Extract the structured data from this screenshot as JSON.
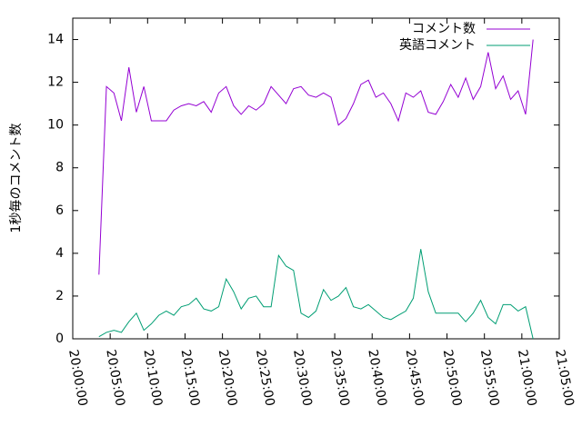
{
  "chart_data": {
    "type": "line",
    "y_label": "1秒毎のコメント数",
    "x": [
      "20:03:30",
      "20:04:30",
      "20:05:30",
      "20:06:30",
      "20:07:30",
      "20:08:30",
      "20:09:30",
      "20:10:30",
      "20:11:30",
      "20:12:30",
      "20:13:30",
      "20:14:30",
      "20:15:30",
      "20:16:30",
      "20:17:30",
      "20:18:30",
      "20:19:30",
      "20:20:30",
      "20:21:30",
      "20:22:30",
      "20:23:30",
      "20:24:30",
      "20:25:30",
      "20:26:30",
      "20:27:30",
      "20:28:30",
      "20:29:30",
      "20:30:30",
      "20:31:30",
      "20:32:30",
      "20:33:30",
      "20:34:30",
      "20:35:30",
      "20:36:30",
      "20:37:30",
      "20:38:30",
      "20:39:30",
      "20:40:30",
      "20:41:30",
      "20:42:30",
      "20:43:30",
      "20:44:30",
      "20:45:30",
      "20:46:30",
      "20:47:30",
      "20:48:30",
      "20:49:30",
      "20:50:30",
      "20:51:30",
      "20:52:30",
      "20:53:30",
      "20:54:30",
      "20:55:30",
      "20:56:30",
      "20:57:30",
      "20:58:30",
      "20:59:30",
      "21:00:30",
      "21:01:30"
    ],
    "series": [
      {
        "name": "コメント数",
        "color": "#9400d3",
        "values": [
          3,
          11.8,
          11.5,
          10.2,
          12.7,
          10.6,
          11.8,
          10.2,
          10.2,
          10.2,
          10.7,
          10.9,
          11.0,
          10.9,
          11.1,
          10.6,
          11.5,
          11.8,
          10.9,
          10.5,
          10.9,
          10.7,
          11.0,
          11.8,
          11.4,
          11.0,
          11.7,
          11.8,
          11.4,
          11.3,
          11.5,
          11.3,
          10.0,
          10.3,
          11.0,
          11.9,
          12.1,
          11.3,
          11.5,
          11.0,
          10.2,
          11.5,
          11.3,
          11.6,
          10.6,
          10.5,
          11.1,
          11.9,
          11.3,
          12.2,
          11.2,
          11.8,
          13.4,
          11.7,
          12.3,
          11.2,
          11.6,
          10.5,
          14.0
        ]
      },
      {
        "name": "英語コメント",
        "color": "#009e73",
        "values": [
          0.1,
          0.3,
          0.4,
          0.3,
          0.8,
          1.2,
          0.4,
          0.7,
          1.1,
          1.3,
          1.1,
          1.5,
          1.6,
          1.9,
          1.4,
          1.3,
          1.5,
          2.8,
          2.2,
          1.4,
          1.9,
          2.0,
          1.5,
          1.5,
          3.9,
          3.4,
          3.2,
          1.2,
          1.0,
          1.3,
          2.3,
          1.8,
          2.0,
          2.4,
          1.5,
          1.4,
          1.6,
          1.3,
          1.0,
          0.9,
          1.1,
          1.3,
          1.9,
          4.2,
          2.2,
          1.2,
          1.2,
          1.2,
          1.2,
          0.8,
          1.2,
          1.8,
          1.0,
          0.7,
          1.6,
          1.6,
          1.3,
          1.5,
          0
        ]
      }
    ],
    "xlim": [
      "20:00:00",
      "21:05:00"
    ],
    "xticks": [
      "20:00:00",
      "20:05:00",
      "20:10:00",
      "20:15:00",
      "20:20:00",
      "20:25:00",
      "20:30:00",
      "20:35:00",
      "20:40:00",
      "20:45:00",
      "20:50:00",
      "20:55:00",
      "21:00:00",
      "21:05:00"
    ],
    "ylim": [
      0,
      15
    ],
    "yticks": [
      0,
      2,
      4,
      6,
      8,
      10,
      12,
      14
    ],
    "legend": "upper-right"
  }
}
